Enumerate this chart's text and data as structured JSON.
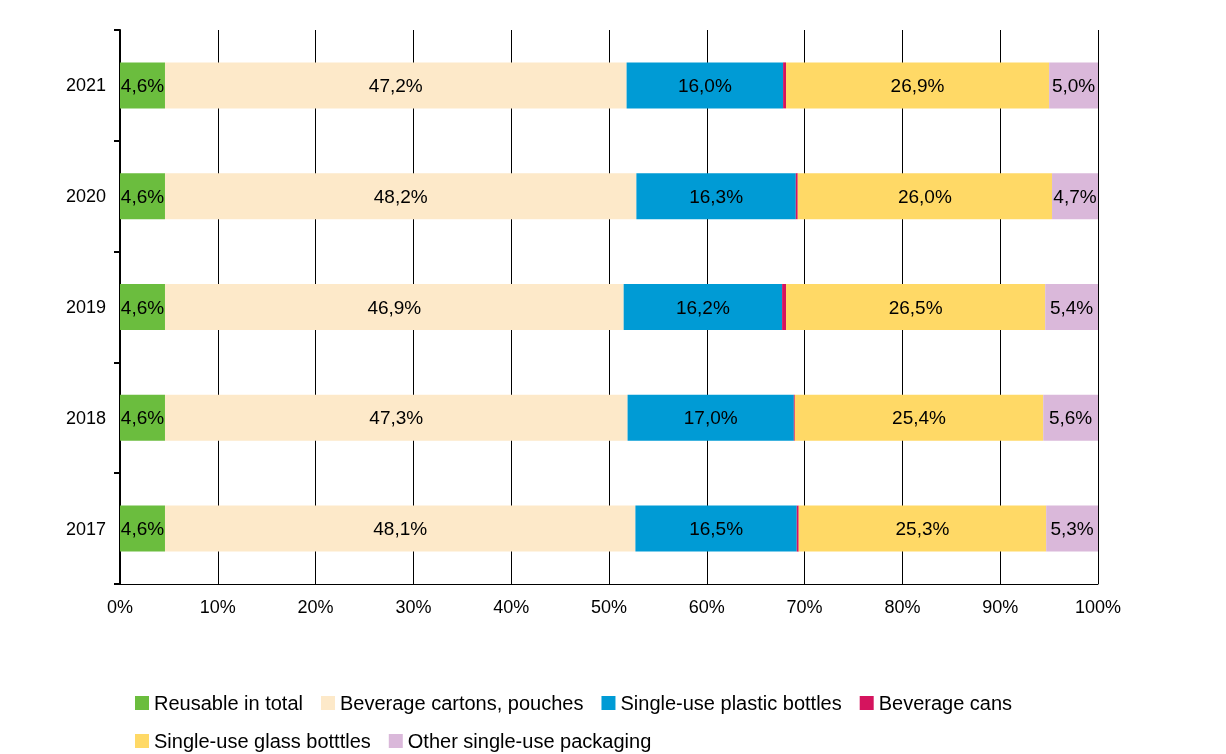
{
  "chart_data": {
    "type": "bar",
    "orientation": "horizontal",
    "stacked": true,
    "categories": [
      "2021",
      "2020",
      "2019",
      "2018",
      "2017"
    ],
    "series": [
      {
        "name": "Reusable in total",
        "color": "#6bbd3e",
        "values": [
          4.6,
          4.6,
          4.6,
          4.6,
          4.6
        ],
        "value_labels": [
          "4,6%",
          "4,6%",
          "4,6%",
          "4,6%",
          "4,6%"
        ]
      },
      {
        "name": "Beverage cartons, pouches",
        "color": "#fde9c9",
        "values": [
          47.2,
          48.2,
          46.9,
          47.3,
          48.1
        ],
        "value_labels": [
          "47,2%",
          "48,2%",
          "46,9%",
          "47,3%",
          "48,1%"
        ]
      },
      {
        "name": "Single-use plastic bottles",
        "color": "#009bd5",
        "values": [
          16.0,
          16.3,
          16.2,
          17.0,
          16.5
        ],
        "value_labels": [
          "16,0%",
          "16,3%",
          "16,2%",
          "17,0%",
          "16,5%"
        ]
      },
      {
        "name": "Beverage cans",
        "color": "#d5145e",
        "values": [
          0.3,
          0.2,
          0.4,
          0.1,
          0.2
        ],
        "value_labels": [
          null,
          null,
          null,
          null,
          null
        ]
      },
      {
        "name": "Single-use glass botttles",
        "color": "#ffd966",
        "values": [
          26.9,
          26.0,
          26.5,
          25.4,
          25.3
        ],
        "value_labels": [
          "26,9%",
          "26,0%",
          "26,5%",
          "25,4%",
          "25,3%"
        ]
      },
      {
        "name": "Other single-use packaging",
        "color": "#dab8da",
        "values": [
          5.0,
          4.7,
          5.4,
          5.6,
          5.3
        ],
        "value_labels": [
          "5,0%",
          "4,7%",
          "5,4%",
          "5,6%",
          "5,3%"
        ]
      }
    ],
    "xlim": [
      0,
      100
    ],
    "xticks": [
      {
        "value": 0,
        "label": "0%"
      },
      {
        "value": 10,
        "label": "10%"
      },
      {
        "value": 20,
        "label": "20%"
      },
      {
        "value": 30,
        "label": "30%"
      },
      {
        "value": 40,
        "label": "40%"
      },
      {
        "value": 50,
        "label": "50%"
      },
      {
        "value": 60,
        "label": "60%"
      },
      {
        "value": 70,
        "label": "70%"
      },
      {
        "value": 80,
        "label": "80%"
      },
      {
        "value": 90,
        "label": "90%"
      },
      {
        "value": 100,
        "label": "100%"
      }
    ],
    "grid": "x",
    "legend": "bottom"
  }
}
